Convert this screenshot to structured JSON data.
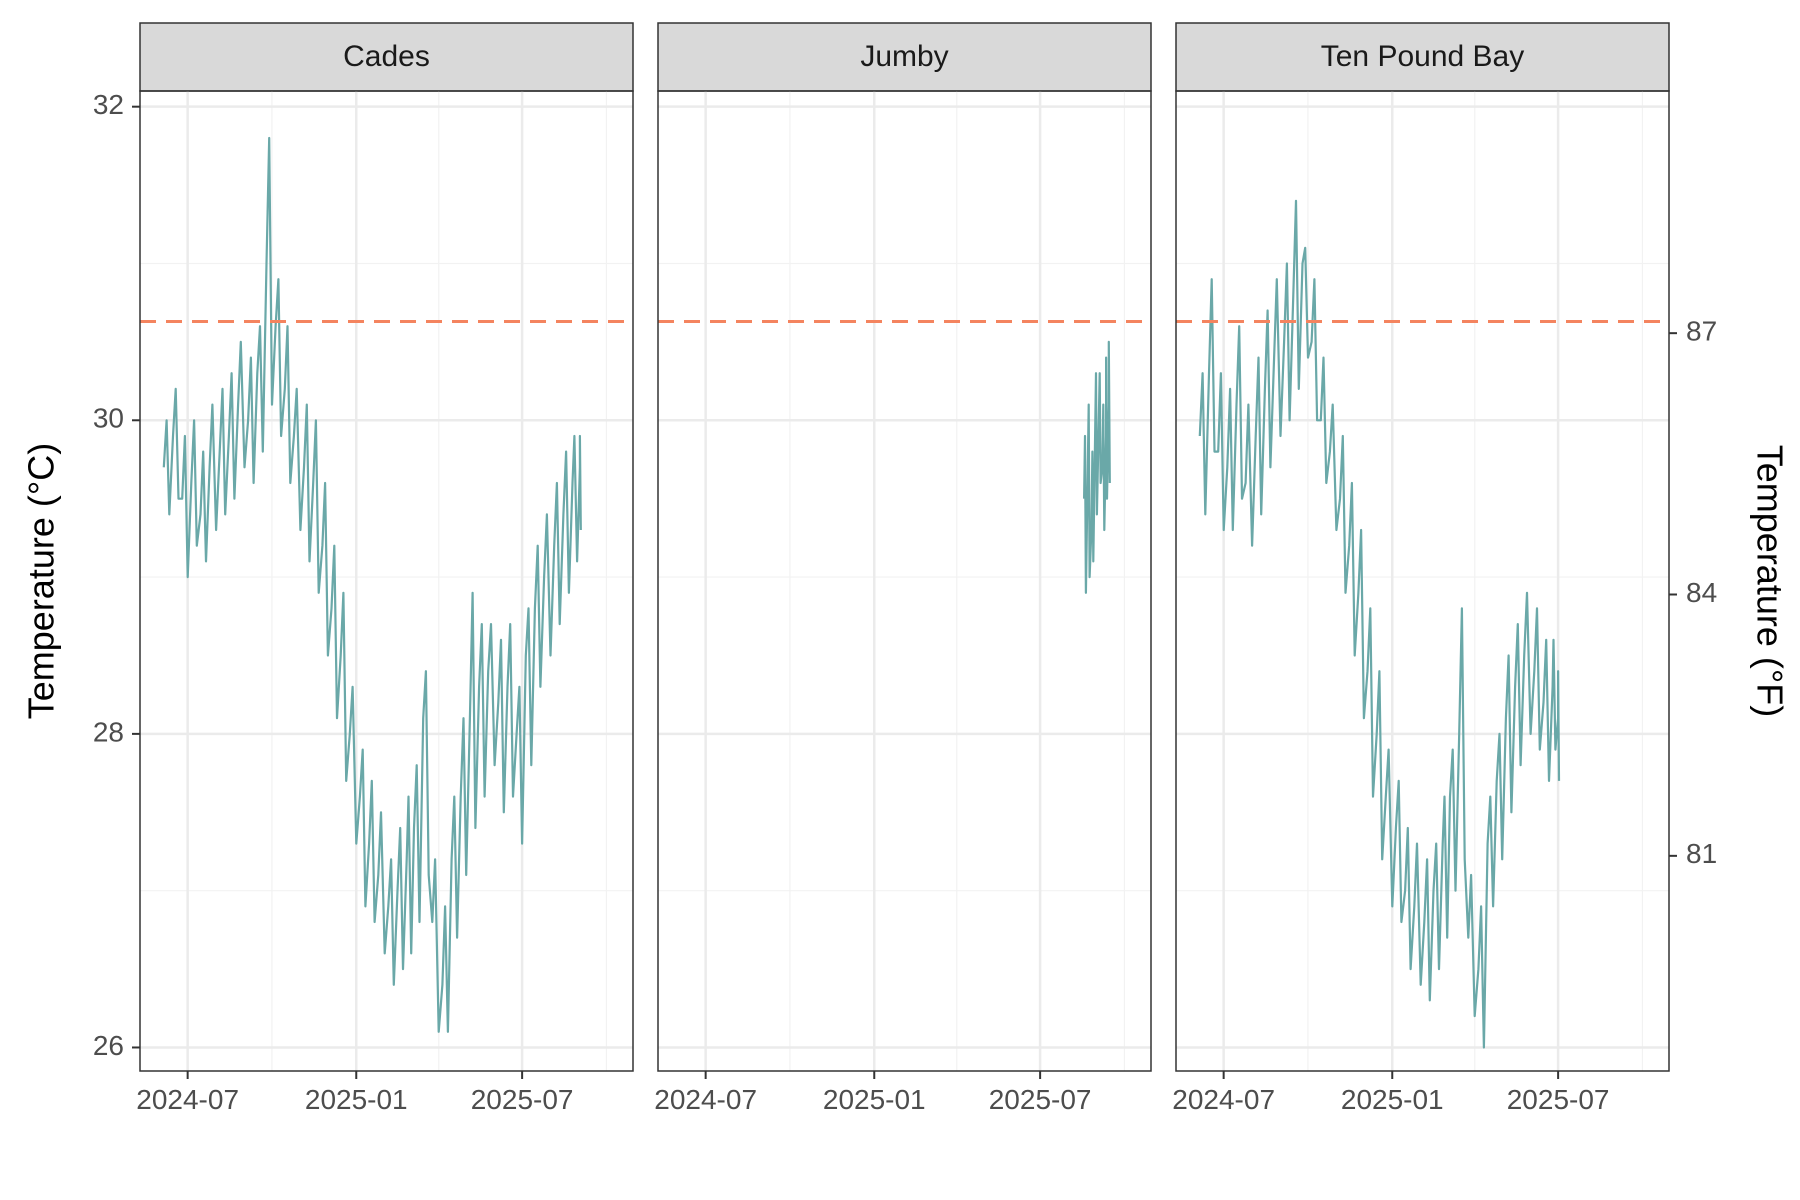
{
  "chart_data": {
    "type": "line",
    "facet_by": "site",
    "panels": [
      "Cades",
      "Jumby",
      "Ten Pound Bay"
    ],
    "ylabel": "Temperature (°C)",
    "ylabel_right": "Temperature (°F)",
    "ylim": [
      25.85,
      32.1
    ],
    "y_ticks": [
      26,
      28,
      30,
      32
    ],
    "y_ticks_right": [
      81,
      84,
      87
    ],
    "x_ticks": [
      "2024-07",
      "2025-01",
      "2025-07"
    ],
    "xlim": [
      "2024-05-10",
      "2025-10-30"
    ],
    "threshold": {
      "value": 30.63,
      "style": "dashed",
      "color": "#f4845f"
    },
    "line_color": "#6aa8a8",
    "grid": true,
    "legend": "none",
    "series": [
      {
        "panel": "Cades",
        "x": [
          "2024-06-05",
          "2024-06-15",
          "2024-06-25",
          "2024-07-05",
          "2024-07-15",
          "2024-07-25",
          "2024-08-05",
          "2024-08-15",
          "2024-08-25",
          "2024-09-05",
          "2024-09-15",
          "2024-09-25",
          "2024-10-05",
          "2024-10-15",
          "2024-10-25",
          "2024-11-05",
          "2024-11-15",
          "2024-11-25",
          "2024-12-05",
          "2024-12-15",
          "2024-12-25",
          "2025-01-05",
          "2025-01-15",
          "2025-01-25",
          "2025-02-05",
          "2025-02-15",
          "2025-02-25",
          "2025-03-05",
          "2025-03-15",
          "2025-03-25",
          "2025-04-05",
          "2025-04-15",
          "2025-04-25",
          "2025-05-05",
          "2025-05-15",
          "2025-05-25",
          "2025-06-05",
          "2025-06-15",
          "2025-06-25",
          "2025-07-05",
          "2025-07-15",
          "2025-07-25",
          "2025-08-05",
          "2025-08-15",
          "2025-08-25",
          "2025-09-02"
        ],
        "y": [
          29.7,
          29.9,
          29.5,
          29.6,
          29.4,
          29.7,
          29.8,
          29.9,
          30.1,
          30.0,
          30.3,
          31.0,
          30.6,
          30.2,
          29.9,
          29.7,
          29.6,
          29.2,
          28.8,
          28.5,
          28.0,
          27.6,
          27.3,
          27.1,
          26.9,
          27.0,
          27.2,
          27.4,
          28.1,
          26.8,
          26.4,
          27.2,
          27.6,
          28.1,
          28.3,
          28.4,
          28.2,
          28.3,
          28.0,
          28.5,
          28.8,
          29.0,
          29.2,
          29.4,
          29.6,
          29.7
        ],
        "y_low": [
          29.4,
          29.5,
          29.0,
          29.2,
          29.1,
          29.3,
          29.4,
          29.5,
          29.7,
          29.6,
          29.8,
          30.1,
          29.9,
          29.6,
          29.3,
          29.1,
          28.9,
          28.5,
          28.1,
          27.7,
          27.3,
          26.9,
          26.8,
          26.6,
          26.4,
          26.5,
          26.6,
          26.8,
          27.1,
          26.1,
          26.1,
          26.7,
          27.1,
          27.4,
          27.6,
          27.8,
          27.5,
          27.6,
          27.3,
          27.8,
          28.3,
          28.5,
          28.7,
          28.9,
          29.1,
          29.3
        ],
        "y_high": [
          30.0,
          30.2,
          29.9,
          30.0,
          29.8,
          30.1,
          30.2,
          30.3,
          30.5,
          30.4,
          30.6,
          31.8,
          30.9,
          30.6,
          30.2,
          30.1,
          30.0,
          29.6,
          29.2,
          28.9,
          28.3,
          27.9,
          27.7,
          27.5,
          27.2,
          27.4,
          27.6,
          27.8,
          28.4,
          27.2,
          26.9,
          27.6,
          28.1,
          28.9,
          28.7,
          28.7,
          28.6,
          28.7,
          28.3,
          28.8,
          29.2,
          29.4,
          29.6,
          29.8,
          29.9,
          29.9
        ]
      },
      {
        "panel": "Jumby",
        "x": [
          "2025-08-18",
          "2025-08-22",
          "2025-08-26",
          "2025-08-30",
          "2025-09-03",
          "2025-09-07",
          "2025-09-11",
          "2025-09-14"
        ],
        "y": [
          29.5,
          29.7,
          29.3,
          29.9,
          30.0,
          29.7,
          29.9,
          30.1
        ],
        "y_low": [
          28.9,
          29.0,
          29.1,
          29.4,
          29.6,
          29.3,
          29.5,
          29.6
        ],
        "y_high": [
          29.9,
          30.1,
          29.8,
          30.3,
          30.3,
          30.1,
          30.4,
          30.5
        ]
      },
      {
        "panel": "Ten Pound Bay",
        "x": [
          "2024-06-05",
          "2024-06-15",
          "2024-06-25",
          "2024-07-05",
          "2024-07-15",
          "2024-07-25",
          "2024-08-05",
          "2024-08-15",
          "2024-08-25",
          "2024-09-05",
          "2024-09-15",
          "2024-09-25",
          "2024-10-05",
          "2024-10-15",
          "2024-10-25",
          "2024-11-05",
          "2024-11-15",
          "2024-11-25",
          "2024-12-05",
          "2024-12-15",
          "2024-12-25",
          "2025-01-05",
          "2025-01-15",
          "2025-01-25",
          "2025-02-05",
          "2025-02-15",
          "2025-02-25",
          "2025-03-05",
          "2025-03-15",
          "2025-03-25",
          "2025-04-05",
          "2025-04-15",
          "2025-04-25",
          "2025-05-05",
          "2025-05-15",
          "2025-05-25",
          "2025-06-05",
          "2025-06-15",
          "2025-06-25",
          "2025-07-01"
        ],
        "y": [
          29.9,
          30.3,
          29.8,
          29.7,
          30.1,
          29.6,
          29.9,
          30.2,
          30.4,
          30.5,
          30.8,
          31.0,
          30.5,
          30.0,
          29.8,
          29.5,
          29.2,
          28.9,
          28.4,
          28.0,
          27.6,
          27.4,
          27.0,
          26.9,
          26.8,
          27.0,
          27.3,
          27.6,
          28.0,
          26.7,
          26.5,
          27.3,
          27.7,
          28.1,
          28.3,
          28.5,
          28.4,
          28.2,
          28.3,
          28.1
        ],
        "y_low": [
          29.4,
          29.8,
          29.3,
          29.3,
          29.5,
          29.2,
          29.4,
          29.7,
          29.9,
          30.0,
          30.2,
          30.4,
          30.0,
          29.6,
          29.3,
          28.9,
          28.5,
          28.1,
          27.6,
          27.2,
          26.9,
          26.8,
          26.5,
          26.4,
          26.3,
          26.5,
          26.7,
          27.0,
          27.2,
          26.2,
          26.0,
          26.9,
          27.2,
          27.5,
          27.8,
          28.0,
          27.9,
          27.7,
          27.9,
          27.7
        ],
        "y_high": [
          30.3,
          30.9,
          30.3,
          30.2,
          30.6,
          30.1,
          30.4,
          30.7,
          30.9,
          31.0,
          31.4,
          31.1,
          30.9,
          30.4,
          30.1,
          29.9,
          29.6,
          29.3,
          28.8,
          28.4,
          27.9,
          27.7,
          27.4,
          27.3,
          27.2,
          27.3,
          27.6,
          27.9,
          28.8,
          27.1,
          26.9,
          27.6,
          28.0,
          28.5,
          28.7,
          28.9,
          28.8,
          28.6,
          28.6,
          28.4
        ]
      }
    ]
  }
}
